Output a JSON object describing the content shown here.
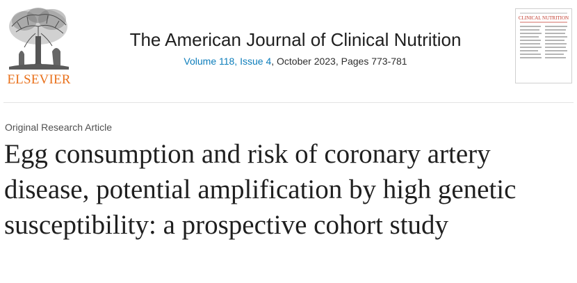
{
  "publisher": {
    "logo_text": "ELSEVIER",
    "accent_color": "#e9711c"
  },
  "journal": {
    "title": "The American Journal of Clinical Nutrition",
    "volume_link": "Volume 118, Issue 4",
    "date_pages": ", October 2023, Pages 773-781",
    "link_color": "#0c7dbb"
  },
  "cover": {
    "banner_text": "CLINICAL NUTRITION"
  },
  "article": {
    "type": "Original Research Article",
    "title": "Egg consumption and risk of coronary artery disease, potential amplification by high genetic susceptibility: a prospective cohort study"
  }
}
